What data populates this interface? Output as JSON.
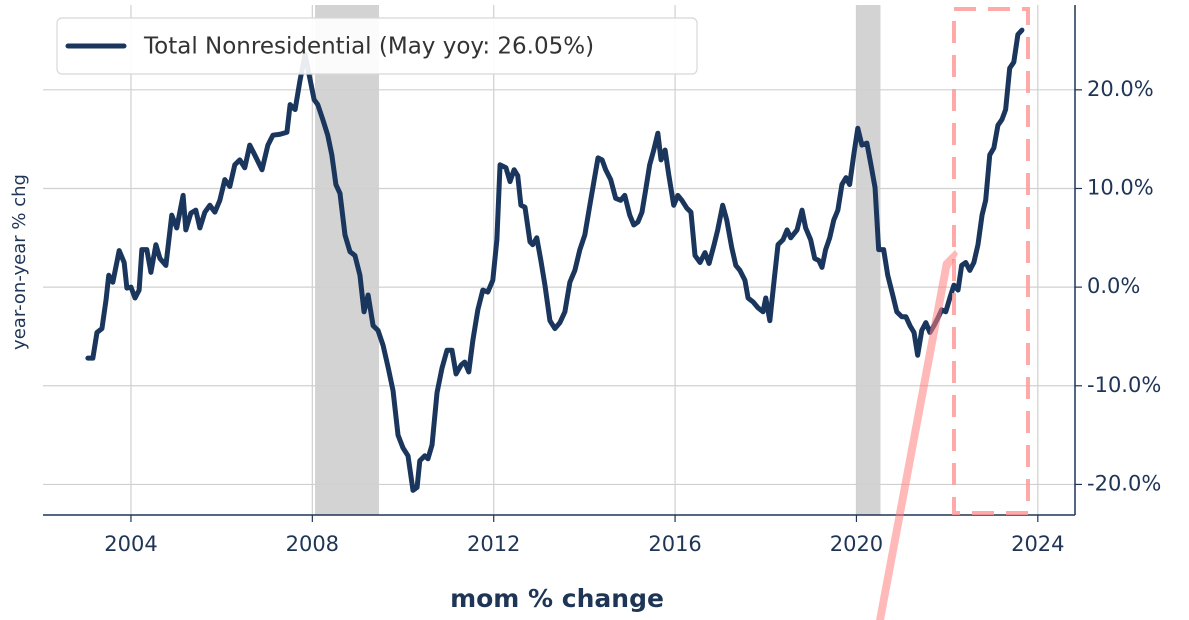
{
  "chart_data": {
    "type": "line",
    "x_label": "mom % change",
    "y_label": "year-on-year % chg",
    "xlim": [
      2002.06,
      2024.82
    ],
    "xticks": [
      2004,
      2008,
      2012,
      2016,
      2020,
      2024
    ],
    "ylim": [
      -23.1,
      28.6
    ],
    "yticks": [
      {
        "value": -20,
        "label": "-20.0%"
      },
      {
        "value": -10,
        "label": "-10.0%"
      },
      {
        "value": 0,
        "label": "0.0%"
      },
      {
        "value": 10,
        "label": "10.0%"
      },
      {
        "value": 20,
        "label": "20.0%"
      }
    ],
    "y_axis_side": "right",
    "grid": true,
    "legend": "upper left",
    "shaded_spans": [
      {
        "x": [
          2008.06,
          2009.47
        ],
        "color": "#d3d3d3"
      },
      {
        "x": [
          2020.0,
          2020.53
        ],
        "color": "#d3d3d3"
      }
    ],
    "x": [
      2003.05,
      2003.16,
      2003.25,
      2003.36,
      2003.45,
      2003.51,
      2003.6,
      2003.74,
      2003.85,
      2003.91,
      2004.0,
      2004.09,
      2004.18,
      2004.24,
      2004.35,
      2004.44,
      2004.55,
      2004.64,
      2004.77,
      2004.9,
      2005.01,
      2005.15,
      2005.21,
      2005.32,
      2005.43,
      2005.52,
      2005.63,
      2005.74,
      2005.85,
      2005.96,
      2006.07,
      2006.18,
      2006.29,
      2006.4,
      2006.51,
      2006.62,
      2006.73,
      2006.89,
      2007.02,
      2007.13,
      2007.29,
      2007.44,
      2007.51,
      2007.62,
      2007.73,
      2007.84,
      2007.93,
      2008.04,
      2008.12,
      2008.23,
      2008.34,
      2008.43,
      2008.52,
      2008.61,
      2008.72,
      2008.83,
      2008.94,
      2009.05,
      2009.14,
      2009.23,
      2009.34,
      2009.45,
      2009.56,
      2009.67,
      2009.78,
      2009.89,
      2010.0,
      2010.11,
      2010.22,
      2010.31,
      2010.37,
      2010.48,
      2010.55,
      2010.64,
      2010.75,
      2010.86,
      2010.97,
      2011.08,
      2011.17,
      2011.28,
      2011.36,
      2011.45,
      2011.54,
      2011.65,
      2011.76,
      2011.87,
      2011.98,
      2012.07,
      2012.14,
      2012.27,
      2012.36,
      2012.45,
      2012.53,
      2012.6,
      2012.69,
      2012.8,
      2012.86,
      2012.95,
      2013.04,
      2013.13,
      2013.24,
      2013.35,
      2013.46,
      2013.57,
      2013.68,
      2013.79,
      2013.9,
      2014.01,
      2014.12,
      2014.21,
      2014.3,
      2014.39,
      2014.47,
      2014.58,
      2014.69,
      2014.8,
      2014.89,
      2015.0,
      2015.09,
      2015.18,
      2015.27,
      2015.36,
      2015.44,
      2015.53,
      2015.62,
      2015.69,
      2015.78,
      2015.86,
      2015.97,
      2016.06,
      2016.15,
      2016.26,
      2016.35,
      2016.44,
      2016.55,
      2016.66,
      2016.75,
      2016.86,
      2016.94,
      2017.05,
      2017.14,
      2017.25,
      2017.34,
      2017.43,
      2017.54,
      2017.61,
      2017.72,
      2017.83,
      2017.94,
      2018.0,
      2018.09,
      2018.18,
      2018.27,
      2018.38,
      2018.47,
      2018.55,
      2018.69,
      2018.8,
      2018.88,
      2018.99,
      2019.08,
      2019.17,
      2019.24,
      2019.32,
      2019.41,
      2019.5,
      2019.59,
      2019.68,
      2019.77,
      2019.85,
      2019.94,
      2020.03,
      2020.12,
      2020.23,
      2020.32,
      2020.41,
      2020.49,
      2020.6,
      2020.69,
      2020.8,
      2020.89,
      2021.0,
      2021.09,
      2021.18,
      2021.27,
      2021.35,
      2021.44,
      2021.53,
      2021.62,
      2021.71,
      2021.8,
      2021.88,
      2021.97,
      2022.06,
      2022.15,
      2022.24,
      2022.32,
      2022.41,
      2022.5,
      2022.59,
      2022.68,
      2022.77,
      2022.85,
      2022.94,
      2023.03,
      2023.12,
      2023.21,
      2023.29,
      2023.38,
      2023.47,
      2023.56,
      2023.65
    ],
    "series": [
      {
        "name": "Total Nonresidential (May yoy: 26.05%)",
        "color": "#1b365d",
        "values": [
          -7.2,
          -7.2,
          -4.6,
          -4.2,
          -1.3,
          1.2,
          0.5,
          3.7,
          2.5,
          -0.1,
          0,
          -1.1,
          -0.3,
          3.8,
          3.8,
          1.5,
          4.3,
          2.9,
          2.2,
          7.3,
          6.0,
          9.3,
          5.8,
          7.5,
          7.8,
          6.0,
          7.6,
          8.3,
          7.6,
          8.8,
          10.9,
          10.2,
          12.4,
          12.9,
          12.1,
          14.4,
          13.4,
          11.9,
          14.4,
          15.4,
          15.5,
          15.7,
          18.5,
          18.0,
          21.0,
          23.6,
          21.5,
          19.0,
          18.5,
          17.0,
          15.4,
          13.4,
          10.4,
          9.5,
          5.3,
          3.6,
          3.2,
          1.2,
          -2.5,
          -0.8,
          -3.9,
          -4.4,
          -5.9,
          -8.1,
          -10.5,
          -15.0,
          -16.3,
          -17.1,
          -20.6,
          -20.3,
          -17.6,
          -17.1,
          -17.4,
          -16.0,
          -10.7,
          -8.2,
          -6.4,
          -6.4,
          -8.8,
          -7.9,
          -7.6,
          -8.6,
          -5.4,
          -2.3,
          -0.3,
          -0.5,
          0.7,
          4.8,
          12.4,
          12.1,
          10.7,
          11.9,
          11.3,
          8.3,
          8.1,
          4.6,
          4.3,
          5.0,
          2.7,
          0.2,
          -3.4,
          -4.2,
          -3.6,
          -2.5,
          0.5,
          1.7,
          3.8,
          5.3,
          8.3,
          10.7,
          13.1,
          12.9,
          11.9,
          10.9,
          9.0,
          8.8,
          9.3,
          7.3,
          6.3,
          6.6,
          7.6,
          10.1,
          12.4,
          13.9,
          15.6,
          12.9,
          13.9,
          11.4,
          8.3,
          9.3,
          8.8,
          8.0,
          7.6,
          3.2,
          2.5,
          3.5,
          2.4,
          4.3,
          5.8,
          8.3,
          6.8,
          4.0,
          2.2,
          1.7,
          0.7,
          -1.1,
          -1.5,
          -2.1,
          -2.5,
          -1.1,
          -3.4,
          0.5,
          4.3,
          4.8,
          5.8,
          5.0,
          5.8,
          7.8,
          6.0,
          4.8,
          2.9,
          2.7,
          2.0,
          3.8,
          5.0,
          6.8,
          7.8,
          10.4,
          11.1,
          10.4,
          13.4,
          16.1,
          14.4,
          14.6,
          12.4,
          10.1,
          3.8,
          3.8,
          1.2,
          -0.8,
          -2.5,
          -3.0,
          -3.0,
          -3.9,
          -4.6,
          -6.9,
          -4.4,
          -3.6,
          -4.6,
          -3.9,
          -3.1,
          -2.3,
          -2.5,
          -1.1,
          0.2,
          -0.3,
          2.2,
          2.5,
          1.7,
          2.5,
          4.3,
          7.3,
          8.8,
          13.4,
          14.1,
          16.4,
          17.0,
          18.0,
          22.2,
          22.8,
          25.6,
          26.05
        ]
      }
    ]
  }
}
